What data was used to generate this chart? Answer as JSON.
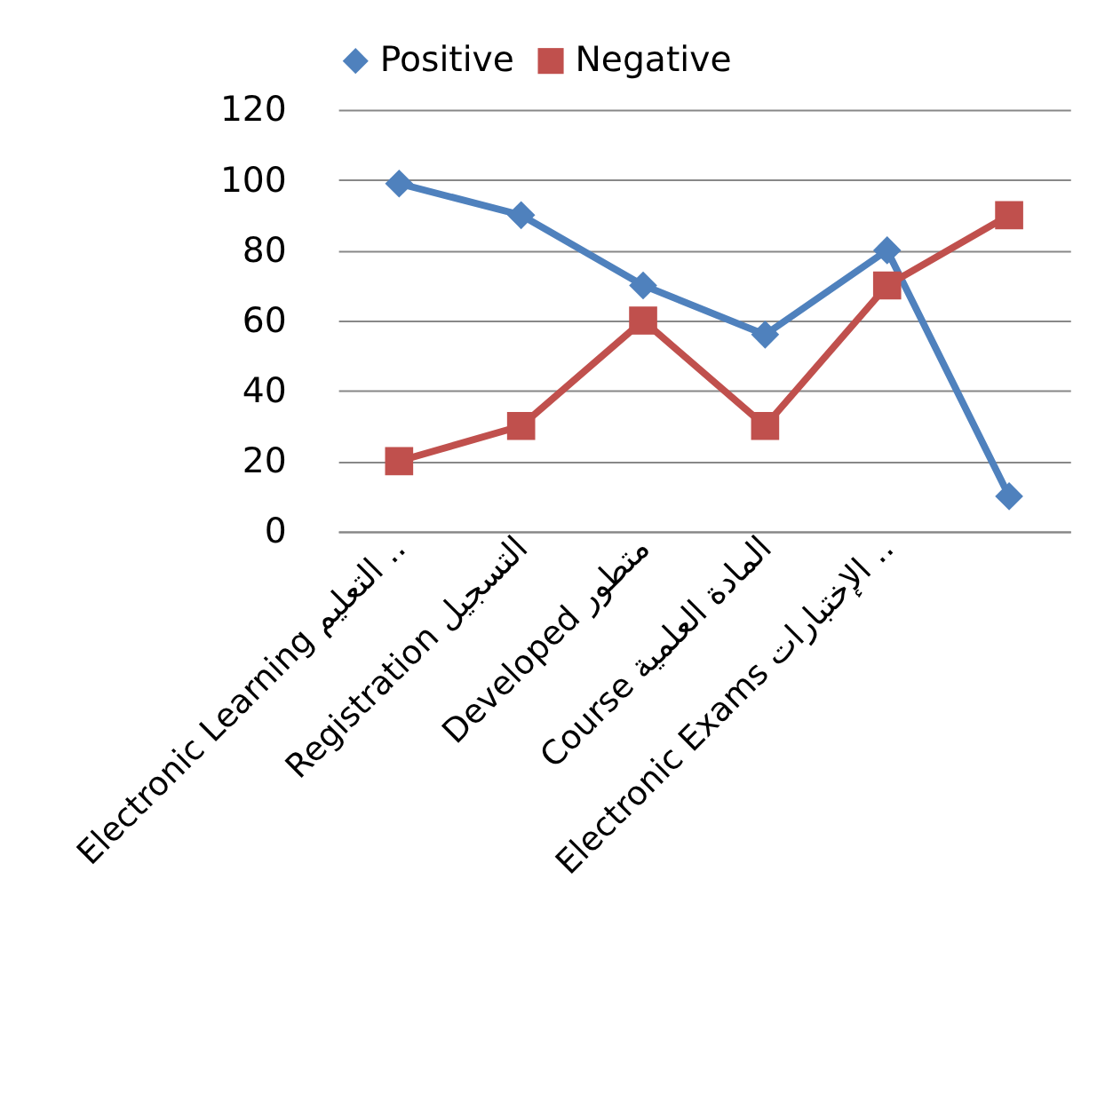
{
  "chart_data": {
    "type": "line",
    "categories": [
      "Electronic Learning التعليم ..",
      "Registration  التسجيل",
      "Developed  متطور",
      "Course  المادة العلمية",
      "Electronic Exams    الإختبارات ..",
      null
    ],
    "series": [
      {
        "name": "Positive",
        "color": "#4f81bd",
        "marker": "diamond",
        "values": [
          99,
          90,
          70,
          56,
          80,
          10
        ]
      },
      {
        "name": "Negative",
        "color": "#c0504d",
        "marker": "square",
        "values": [
          20,
          30,
          60,
          30,
          70,
          90
        ]
      }
    ],
    "ylim": [
      0,
      120
    ],
    "yticks": [
      0,
      20,
      40,
      60,
      80,
      100,
      120
    ],
    "grid": "y",
    "legend": "top",
    "line_style": "solid"
  }
}
